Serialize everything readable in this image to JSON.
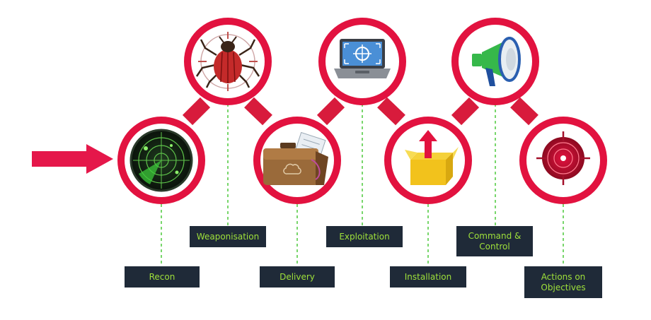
{
  "colors": {
    "ring": "#e2123f",
    "connector": "#d81b3c",
    "dash": "#4cc93a",
    "label_bg": "#1f2a38",
    "label_text": "#9ee03a",
    "arrow": "#e5174a"
  },
  "stages": [
    {
      "id": "recon",
      "label": "Recon",
      "icon": "radar-icon"
    },
    {
      "id": "weaponisation",
      "label": "Weaponisation",
      "icon": "bug-icon"
    },
    {
      "id": "delivery",
      "label": "Delivery",
      "icon": "briefcase-icon"
    },
    {
      "id": "exploitation",
      "label": "Exploitation",
      "icon": "laptop-target-icon"
    },
    {
      "id": "installation",
      "label": "Installation",
      "icon": "box-arrow-icon"
    },
    {
      "id": "command-control",
      "label": "Command &\nControl",
      "icon": "megaphone-icon"
    },
    {
      "id": "actions",
      "label": "Actions on\nObjectives",
      "icon": "target-icon"
    }
  ]
}
